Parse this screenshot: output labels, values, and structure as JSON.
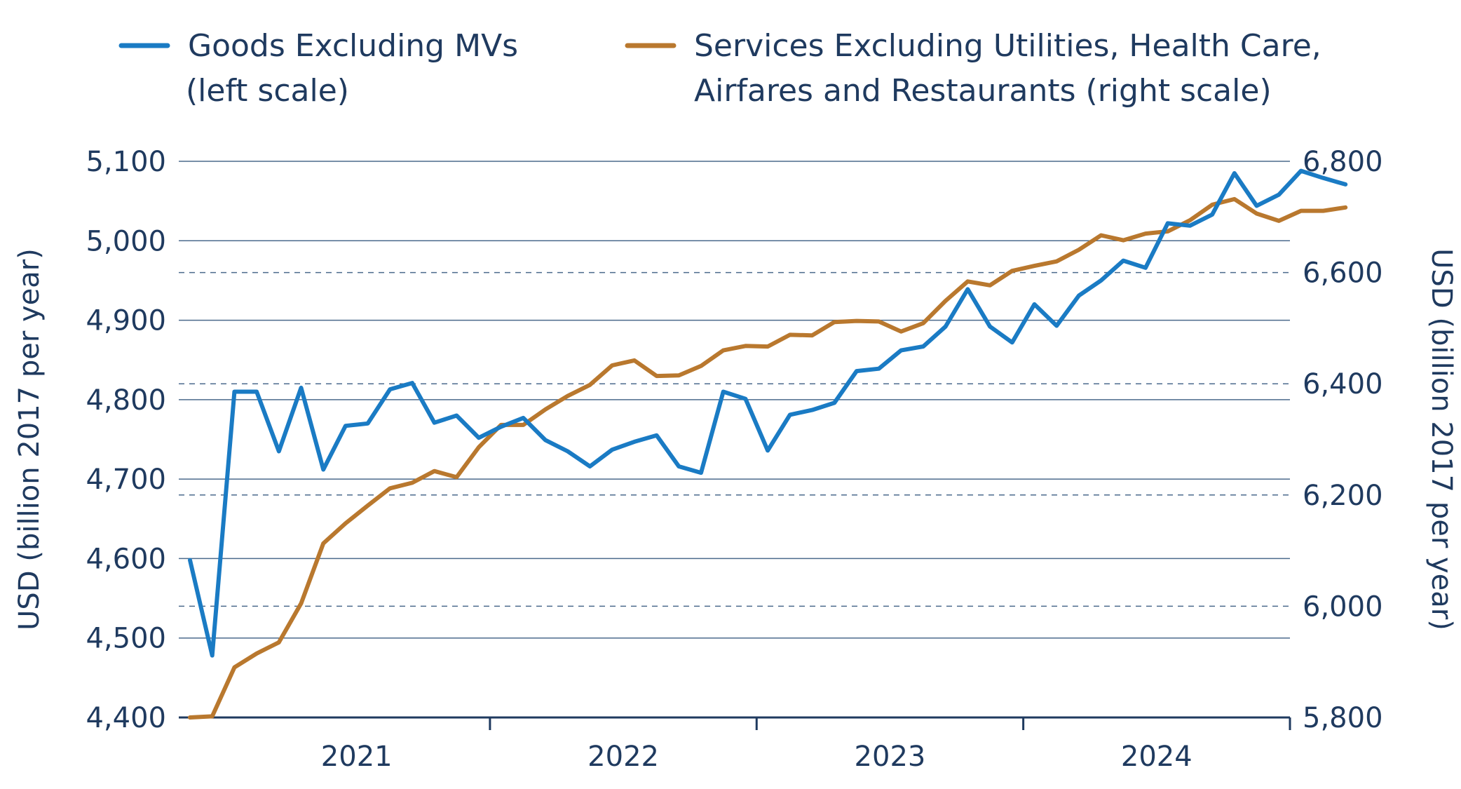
{
  "chart_data": {
    "type": "line",
    "title": "",
    "x_labels": [
      "2021",
      "2022",
      "2023",
      "2024"
    ],
    "x_start": 2020.875,
    "x_step": 0.0833333,
    "xlim": [
      2020.833,
      2025.0
    ],
    "left_axis": {
      "label": "USD (billion 2017 per year)",
      "ylim": [
        4400,
        5100
      ],
      "ticks": [
        4400,
        4500,
        4600,
        4700,
        4800,
        4900,
        5000,
        5100
      ],
      "tick_labels": [
        "4,400",
        "4,500",
        "4,600",
        "4,700",
        "4,800",
        "4,900",
        "5,000",
        "5,100"
      ]
    },
    "right_axis": {
      "label": "USD (billion 2017 per year)",
      "ylim": [
        5800,
        6800
      ],
      "ticks": [
        5800,
        6000,
        6200,
        6400,
        6600,
        6800
      ],
      "tick_labels": [
        "5,800",
        "6,000",
        "6,200",
        "6,400",
        "6,600",
        "6,800"
      ]
    },
    "grid": "solid gridlines at left-axis ticks, dashed gridlines at right-axis ticks",
    "legend_position": "top",
    "series": [
      {
        "name": "Goods Excluding MVs",
        "legend_lines": [
          "Goods Excluding MVs",
          "(left scale)"
        ],
        "axis": "left",
        "color": "#1a7bc4",
        "values": [
          4598,
          4478,
          4810,
          4810,
          4735,
          4815,
          4712,
          4767,
          4770,
          4813,
          4821,
          4771,
          4780,
          4752,
          4766,
          4777,
          4749,
          4735,
          4716,
          4737,
          4747,
          4755,
          4716,
          4708,
          4810,
          4801,
          4736,
          4781,
          4787,
          4796,
          4836,
          4839,
          4862,
          4867,
          4892,
          4939,
          4892,
          4872,
          4920,
          4893,
          4931,
          4950,
          4975,
          4966,
          5022,
          5019,
          5033,
          5085,
          5044,
          5058,
          5088,
          5079,
          5071
        ]
      },
      {
        "name": "Services Excluding Utilities, Health Care, Airfares and Restaurants",
        "legend_lines": [
          "Services Excluding Utilities, Health Care,",
          "Airfares and Restaurants (right scale)"
        ],
        "axis": "right",
        "color": "#b9782e",
        "values": [
          5800,
          5802,
          5890,
          5915,
          5935,
          6005,
          6113,
          6149,
          6181,
          6212,
          6222,
          6243,
          6232,
          6286,
          6326,
          6326,
          6354,
          6378,
          6398,
          6433,
          6442,
          6414,
          6415,
          6432,
          6460,
          6468,
          6467,
          6488,
          6487,
          6511,
          6513,
          6512,
          6494,
          6509,
          6549,
          6584,
          6577,
          6603,
          6612,
          6620,
          6641,
          6667,
          6658,
          6670,
          6674,
          6694,
          6722,
          6732,
          6706,
          6693,
          6711,
          6711,
          6717
        ]
      }
    ]
  }
}
